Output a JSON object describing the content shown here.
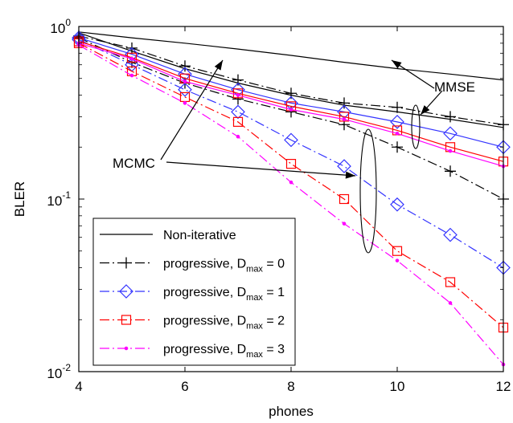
{
  "chart_data": {
    "type": "line",
    "xlabel": "phones",
    "ylabel": "BLER",
    "xlim": [
      4,
      12
    ],
    "ylim": [
      0.01,
      1
    ],
    "y_scale": "log",
    "grid": false,
    "legend_placement": "bottom-left",
    "x_ticks": [
      "4",
      "6",
      "8",
      "10",
      "12"
    ],
    "y_ticks": [
      {
        "base": "10",
        "exp": "0",
        "value": 1
      },
      {
        "base": "10",
        "exp": "-1",
        "value": 0.1
      },
      {
        "base": "10",
        "exp": "-2",
        "value": 0.01
      }
    ],
    "x": [
      4,
      5,
      6,
      7,
      8,
      9,
      10,
      11,
      12
    ],
    "series": [
      {
        "key": "noniter_mmse",
        "name": "Non-iterative",
        "color": "#000000",
        "dash": "solid",
        "marker": "none",
        "legend": true,
        "values": [
          0.93,
          0.86,
          0.8,
          0.74,
          0.68,
          0.62,
          0.57,
          0.53,
          0.49
        ]
      },
      {
        "key": "noniter_mcmc",
        "name": "",
        "color": "#000000",
        "dash": "solid",
        "marker": "none",
        "legend": false,
        "values": [
          0.92,
          0.72,
          0.57,
          0.47,
          0.4,
          0.35,
          0.32,
          0.29,
          0.26
        ]
      },
      {
        "key": "prog0_mmse",
        "name": "",
        "color": "#000000",
        "dash": "dashdot",
        "marker": "plus",
        "legend": false,
        "values": [
          0.88,
          0.75,
          0.59,
          0.49,
          0.41,
          0.36,
          0.34,
          0.3,
          0.27
        ]
      },
      {
        "key": "prog0_mcmc",
        "name": "progressive, D",
        "sub": "max",
        "suffix": " = 0",
        "color": "#000000",
        "dash": "dashdot",
        "marker": "plus",
        "legend": true,
        "values": [
          0.86,
          0.62,
          0.47,
          0.38,
          0.32,
          0.27,
          0.2,
          0.145,
          0.1
        ]
      },
      {
        "key": "prog1_mmse",
        "name": "",
        "color": "#3333ff",
        "dash": "solid",
        "marker": "diamond",
        "legend": false,
        "values": [
          0.86,
          0.69,
          0.53,
          0.43,
          0.36,
          0.32,
          0.28,
          0.24,
          0.2
        ]
      },
      {
        "key": "prog1_mcmc",
        "name": "progressive, D",
        "sub": "max",
        "suffix": " = 1",
        "color": "#3333ff",
        "dash": "dashdot",
        "marker": "diamond",
        "legend": true,
        "values": [
          0.84,
          0.6,
          0.43,
          0.32,
          0.22,
          0.155,
          0.093,
          0.062,
          0.04
        ]
      },
      {
        "key": "prog2_mmse",
        "name": "",
        "color": "#ff0000",
        "dash": "solid",
        "marker": "square",
        "legend": false,
        "values": [
          0.82,
          0.66,
          0.5,
          0.41,
          0.345,
          0.3,
          0.25,
          0.2,
          0.165
        ]
      },
      {
        "key": "prog2_mcmc",
        "name": "progressive, D",
        "sub": "max",
        "suffix": " = 2",
        "color": "#ff0000",
        "dash": "dashdot",
        "marker": "square",
        "legend": true,
        "values": [
          0.8,
          0.55,
          0.39,
          0.28,
          0.16,
          0.1,
          0.05,
          0.033,
          0.018
        ]
      },
      {
        "key": "prog3_mmse",
        "name": "",
        "color": "#ff00ff",
        "dash": "solid",
        "marker": "dot",
        "legend": false,
        "values": [
          0.8,
          0.65,
          0.48,
          0.4,
          0.33,
          0.29,
          0.24,
          0.19,
          0.155
        ]
      },
      {
        "key": "prog3_mcmc",
        "name": "progressive, D",
        "sub": "max",
        "suffix": " = 3",
        "color": "#ff00ff",
        "dash": "dashdot",
        "marker": "dot",
        "legend": true,
        "values": [
          0.78,
          0.52,
          0.36,
          0.23,
          0.125,
          0.072,
          0.044,
          0.025,
          0.011
        ]
      }
    ],
    "annotations": [
      {
        "key": "mmse",
        "text": "MMSE"
      },
      {
        "key": "mcmc",
        "text": "MCMC"
      }
    ]
  }
}
